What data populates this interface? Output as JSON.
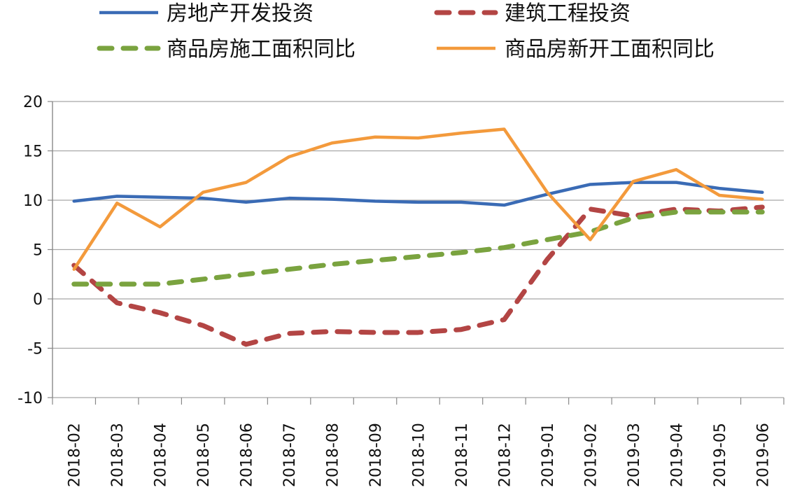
{
  "chart_data": {
    "type": "line",
    "title": "",
    "xlabel": "",
    "ylabel": "",
    "categories": [
      "2018-02",
      "2018-03",
      "2018-04",
      "2018-05",
      "2018-06",
      "2018-07",
      "2018-08",
      "2018-09",
      "2018-10",
      "2018-11",
      "2018-12",
      "2019-01",
      "2019-02",
      "2019-03",
      "2019-04",
      "2019-05",
      "2019-06"
    ],
    "yticks": [
      "20",
      "15",
      "10",
      "5",
      "0",
      "-5",
      "-10"
    ],
    "ylim": [
      -10,
      20
    ],
    "grid": true,
    "legend_position": "top",
    "series": [
      {
        "name": "房地产开发投资",
        "color": "#3a6bb5",
        "dash": "solid",
        "values": [
          9.9,
          10.4,
          10.3,
          10.2,
          9.8,
          10.2,
          10.1,
          9.9,
          9.8,
          9.8,
          9.5,
          10.6,
          11.6,
          11.8,
          11.8,
          11.2,
          10.8
        ]
      },
      {
        "name": "建筑工程投资",
        "color": "#b34544",
        "dash": "dashed",
        "values": [
          3.4,
          -0.4,
          -1.4,
          -2.7,
          -4.6,
          -3.5,
          -3.3,
          -3.4,
          -3.4,
          -3.1,
          -2.1,
          4.0,
          9.1,
          8.4,
          9.1,
          8.9,
          9.3
        ]
      },
      {
        "name": "商品房施工面积同比",
        "color": "#7aa33f",
        "dash": "dashed",
        "values": [
          1.5,
          1.5,
          1.5,
          2.0,
          2.5,
          3.0,
          3.5,
          3.9,
          4.3,
          4.7,
          5.2,
          6.0,
          6.8,
          8.2,
          8.8,
          8.8,
          8.8
        ]
      },
      {
        "name": "商品房新开工面积同比",
        "color": "#f39a3c",
        "dash": "solid",
        "values": [
          3.0,
          9.7,
          7.3,
          10.8,
          11.8,
          14.4,
          15.8,
          16.4,
          16.3,
          16.8,
          17.2,
          10.8,
          6.0,
          11.9,
          13.1,
          10.5,
          10.1
        ]
      }
    ]
  }
}
